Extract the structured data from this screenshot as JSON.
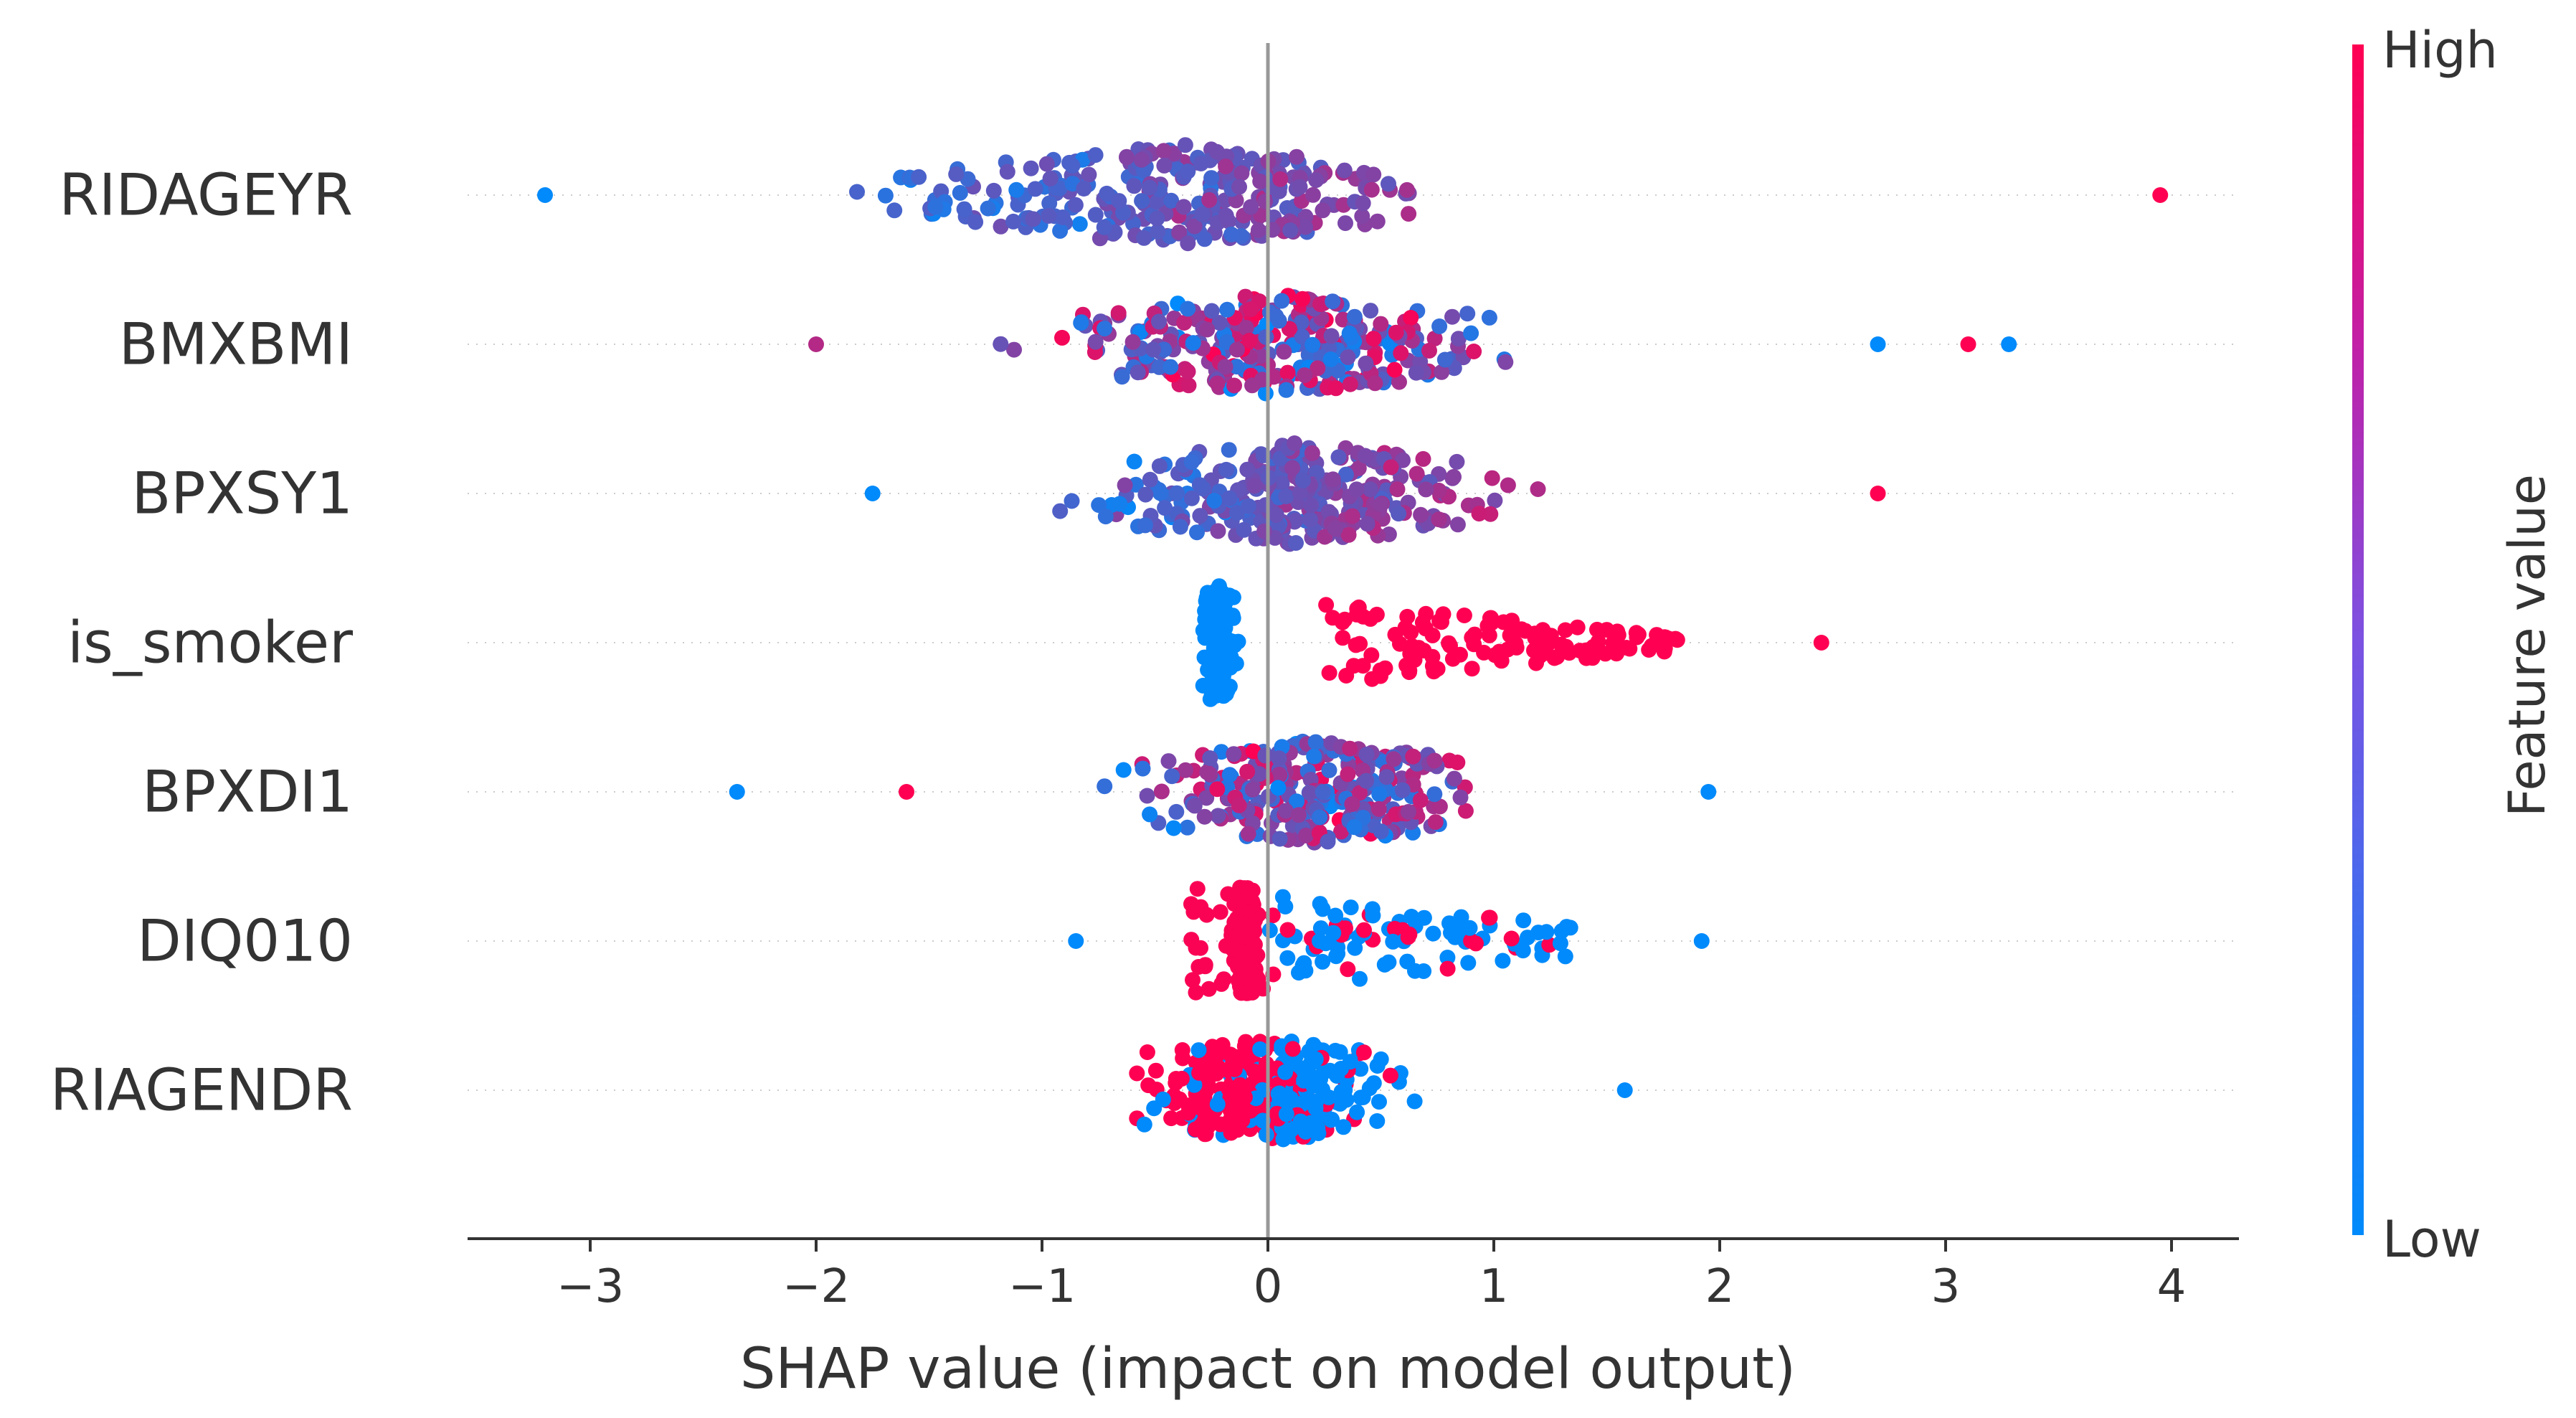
{
  "chart_data": {
    "type": "scatter",
    "subtype": "shap-beeswarm",
    "title": "",
    "xlabel": "SHAP value (impact on model output)",
    "ylabel": "",
    "xlim": [
      -3.6,
      4.3
    ],
    "xticks": [
      {
        "value": -3,
        "label": "−3"
      },
      {
        "value": -2,
        "label": "−2"
      },
      {
        "value": -1,
        "label": "−1"
      },
      {
        "value": 0,
        "label": "0"
      },
      {
        "value": 1,
        "label": "1"
      },
      {
        "value": 2,
        "label": "2"
      },
      {
        "value": 3,
        "label": "3"
      },
      {
        "value": 4,
        "label": "4"
      }
    ],
    "zero_line": 0,
    "features": [
      {
        "name": "RIDAGEYR",
        "min": -3.2,
        "max": 3.95,
        "core": [
          -1.1,
          0.3
        ],
        "spread": 1.15,
        "color_mode": "increasing",
        "outliers": [
          {
            "x": -3.2,
            "c": 0.0
          },
          {
            "x": 3.95,
            "c": 1.0
          }
        ]
      },
      {
        "name": "BMXBMI",
        "min": -2.0,
        "max": 3.3,
        "core": [
          -0.3,
          0.35
        ],
        "spread": 0.95,
        "color_mode": "mixed",
        "outliers": [
          {
            "x": 2.7,
            "c": 0.0
          },
          {
            "x": 3.1,
            "c": 1.0
          },
          {
            "x": 3.28,
            "c": 0.0
          },
          {
            "x": -2.0,
            "c": 0.7
          }
        ]
      },
      {
        "name": "BPXSY1",
        "min": -1.75,
        "max": 2.7,
        "core": [
          -0.1,
          0.3
        ],
        "spread": 0.85,
        "color_mode": "increasing",
        "outliers": [
          {
            "x": -1.75,
            "c": 0.0
          },
          {
            "x": 2.7,
            "c": 1.0
          }
        ]
      },
      {
        "name": "is_smoker",
        "min": -0.4,
        "max": 2.45,
        "core": [
          -0.25,
          -0.2
        ],
        "spread": 0.4,
        "color_mode": "smoker",
        "outliers": [
          {
            "x": 2.45,
            "c": 1.0
          }
        ]
      },
      {
        "name": "BPXDI1",
        "min": -2.35,
        "max": 1.95,
        "core": [
          0.0,
          0.4
        ],
        "spread": 0.75,
        "color_mode": "mixed",
        "outliers": [
          {
            "x": -2.35,
            "c": 0.0
          },
          {
            "x": -1.6,
            "c": 1.0
          },
          {
            "x": 1.95,
            "c": 0.0
          }
        ]
      },
      {
        "name": "DIQ010",
        "min": -0.85,
        "max": 1.92,
        "core": [
          -0.15,
          -0.1
        ],
        "spread": 0.5,
        "color_mode": "diabetes",
        "outliers": [
          {
            "x": -0.85,
            "c": 0.0
          },
          {
            "x": 1.92,
            "c": 0.0
          }
        ]
      },
      {
        "name": "RIAGENDR",
        "min": -0.58,
        "max": 1.58,
        "core": [
          -0.1,
          0.1
        ],
        "spread": 0.55,
        "color_mode": "gender",
        "outliers": [
          {
            "x": 1.58,
            "c": 0.0
          }
        ]
      }
    ],
    "colorbar": {
      "label": "Feature value",
      "high_label": "High",
      "low_label": "Low",
      "low_color": "#008afb",
      "high_color": "#ff0052"
    }
  }
}
